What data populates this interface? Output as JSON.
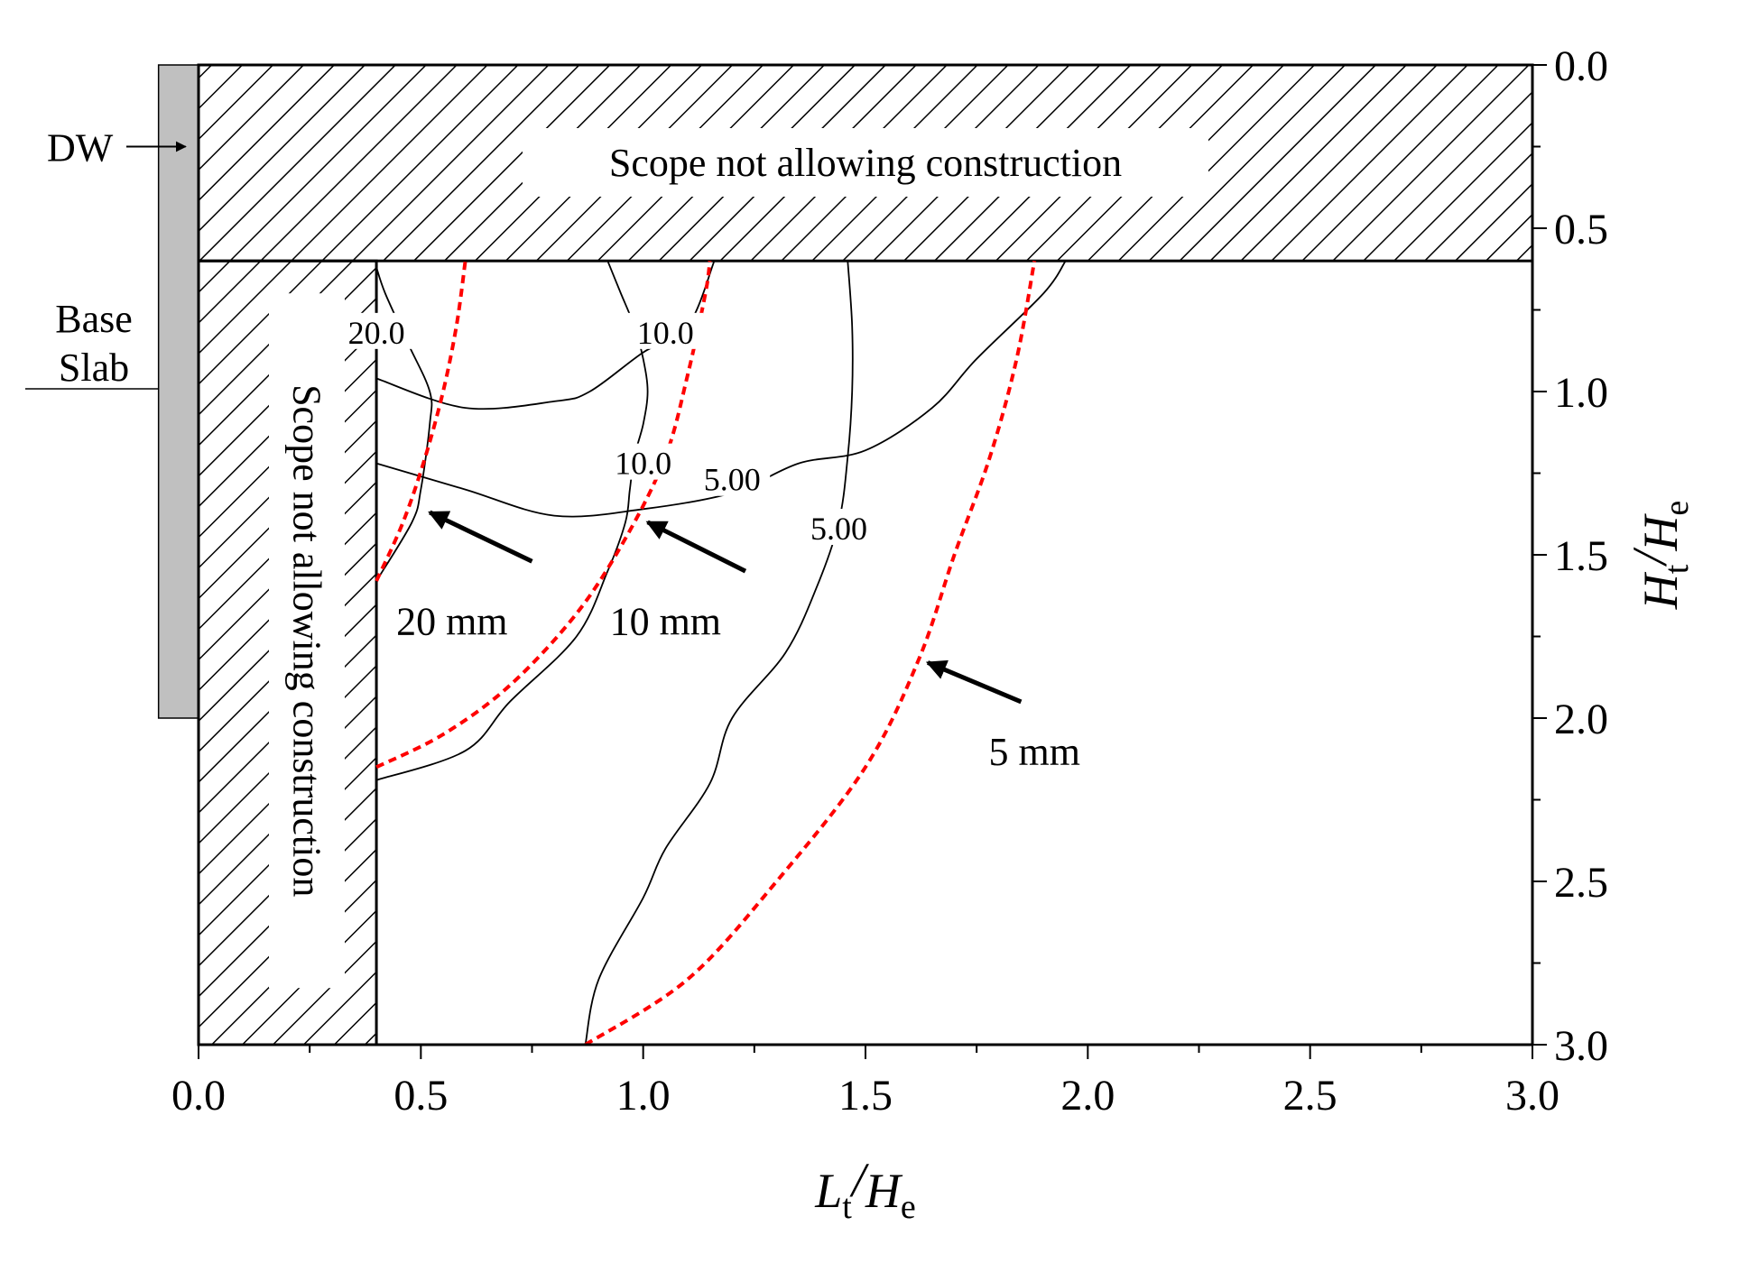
{
  "chart_data": {
    "type": "contour",
    "xlabel": {
      "main": "L",
      "sub": "t",
      "sep": "/",
      "main2": "H",
      "sub2": "e"
    },
    "ylabel": {
      "main": "H",
      "sub": "t",
      "sep": "/",
      "main2": "H",
      "sub2": "e"
    },
    "xlim": [
      0.0,
      3.0
    ],
    "ylim": [
      0.0,
      3.0
    ],
    "y_inverted": true,
    "y_axis_side": "right",
    "x_ticks": [
      "0.0",
      "0.5",
      "1.0",
      "1.5",
      "2.0",
      "2.5",
      "3.0"
    ],
    "y_ticks": [
      "0.0",
      "0.5",
      "1.0",
      "1.5",
      "2.0",
      "2.5",
      "3.0"
    ],
    "x_tick_values": [
      0,
      0.5,
      1.0,
      1.5,
      2.0,
      2.5,
      3.0
    ],
    "y_tick_values": [
      0,
      0.5,
      1.0,
      1.5,
      2.0,
      2.5,
      3.0
    ],
    "grid": false,
    "restricted_regions": [
      {
        "label": "Scope not allowing construction",
        "x": [
          0.0,
          3.0
        ],
        "y": [
          0.0,
          0.6
        ],
        "orientation": "horizontal"
      },
      {
        "label": "Scope not allowing construction",
        "x": [
          0.0,
          0.4
        ],
        "y": [
          0.6,
          3.0
        ],
        "orientation": "vertical"
      }
    ],
    "wall": {
      "dw_label": "DW",
      "base_slab_label_line1": "Base",
      "base_slab_label_line2": "Slab",
      "x": [
        -0.09,
        0.0
      ],
      "y": [
        0.0,
        2.0
      ],
      "base_slab_y": 1.0
    },
    "contours": [
      {
        "label": "20.0",
        "label_at": [
          0.4,
          0.82
        ],
        "points": [
          [
            0.4,
            0.62
          ],
          [
            0.42,
            0.7
          ],
          [
            0.47,
            0.85
          ],
          [
            0.52,
            1.0
          ],
          [
            0.52,
            1.1
          ],
          [
            0.5,
            1.3
          ],
          [
            0.48,
            1.4
          ],
          [
            0.4,
            1.58
          ]
        ]
      },
      {
        "label": "",
        "label_at": null,
        "points": [
          [
            0.4,
            0.96
          ],
          [
            0.6,
            1.05
          ],
          [
            0.8,
            1.03
          ],
          [
            0.88,
            1.0
          ],
          [
            1.0,
            0.88
          ],
          [
            1.1,
            0.8
          ],
          [
            1.16,
            0.6
          ]
        ]
      },
      {
        "label": "10.0",
        "label_at": [
          1.05,
          0.82
        ],
        "points": []
      },
      {
        "label": "10.0",
        "label_at": [
          1.0,
          1.22
        ],
        "points": [
          [
            0.92,
            0.6
          ],
          [
            0.95,
            0.7
          ],
          [
            0.98,
            0.8
          ],
          [
            1.0,
            0.9
          ],
          [
            1.01,
            1.0
          ],
          [
            1.0,
            1.1
          ],
          [
            0.98,
            1.2
          ],
          [
            0.97,
            1.3
          ],
          [
            0.96,
            1.4
          ],
          [
            0.92,
            1.55
          ],
          [
            0.85,
            1.75
          ],
          [
            0.7,
            1.95
          ],
          [
            0.6,
            2.1
          ],
          [
            0.4,
            2.19
          ]
        ]
      },
      {
        "label": "5.00",
        "label_at": [
          1.2,
          1.27
        ],
        "points": [
          [
            0.4,
            1.22
          ],
          [
            0.6,
            1.3
          ],
          [
            0.8,
            1.38
          ],
          [
            1.0,
            1.36
          ],
          [
            1.2,
            1.31
          ],
          [
            1.35,
            1.22
          ],
          [
            1.5,
            1.18
          ],
          [
            1.65,
            1.05
          ],
          [
            1.75,
            0.9
          ],
          [
            1.9,
            0.7
          ],
          [
            1.95,
            0.6
          ]
        ]
      },
      {
        "label": "5.00",
        "label_at": [
          1.44,
          1.42
        ],
        "points": [
          [
            1.46,
            0.6
          ],
          [
            1.47,
            0.8
          ],
          [
            1.47,
            1.0
          ],
          [
            1.46,
            1.2
          ],
          [
            1.44,
            1.4
          ],
          [
            1.39,
            1.6
          ],
          [
            1.32,
            1.8
          ],
          [
            1.2,
            2.0
          ],
          [
            1.15,
            2.2
          ],
          [
            1.05,
            2.4
          ],
          [
            1.0,
            2.55
          ],
          [
            0.9,
            2.8
          ],
          [
            0.87,
            3.0
          ]
        ]
      }
    ],
    "limit_curves": [
      {
        "name": "20 mm",
        "color": "#ff0000",
        "points": [
          [
            0.4,
            1.58
          ],
          [
            0.46,
            1.4
          ],
          [
            0.51,
            1.2
          ],
          [
            0.55,
            1.0
          ],
          [
            0.58,
            0.8
          ],
          [
            0.6,
            0.6
          ]
        ]
      },
      {
        "name": "10 mm",
        "color": "#ff0000",
        "points": [
          [
            0.4,
            2.15
          ],
          [
            0.55,
            2.05
          ],
          [
            0.7,
            1.9
          ],
          [
            0.85,
            1.68
          ],
          [
            0.96,
            1.45
          ],
          [
            1.05,
            1.2
          ],
          [
            1.1,
            0.95
          ],
          [
            1.14,
            0.7
          ],
          [
            1.15,
            0.6
          ]
        ]
      },
      {
        "name": "5 mm",
        "color": "#ff0000",
        "points": [
          [
            0.87,
            3.0
          ],
          [
            1.1,
            2.8
          ],
          [
            1.3,
            2.5
          ],
          [
            1.5,
            2.15
          ],
          [
            1.62,
            1.82
          ],
          [
            1.7,
            1.5
          ],
          [
            1.78,
            1.2
          ],
          [
            1.84,
            0.9
          ],
          [
            1.88,
            0.6
          ]
        ]
      }
    ],
    "annotations": [
      {
        "text": "20 mm",
        "text_at": [
          0.57,
          1.7
        ],
        "arrow_from": [
          0.75,
          1.52
        ],
        "arrow_to": [
          0.52,
          1.37
        ]
      },
      {
        "text": "10 mm",
        "text_at": [
          1.05,
          1.7
        ],
        "arrow_from": [
          1.23,
          1.55
        ],
        "arrow_to": [
          1.01,
          1.4
        ]
      },
      {
        "text": "5 mm",
        "text_at": [
          1.88,
          2.1
        ],
        "arrow_from": [
          1.85,
          1.95
        ],
        "arrow_to": [
          1.64,
          1.83
        ]
      }
    ],
    "colors": {
      "axis": "#000000",
      "contour": "#000000",
      "limit": "#ff0000",
      "wall": "#c0c0c0",
      "arrow": "#000000"
    }
  }
}
